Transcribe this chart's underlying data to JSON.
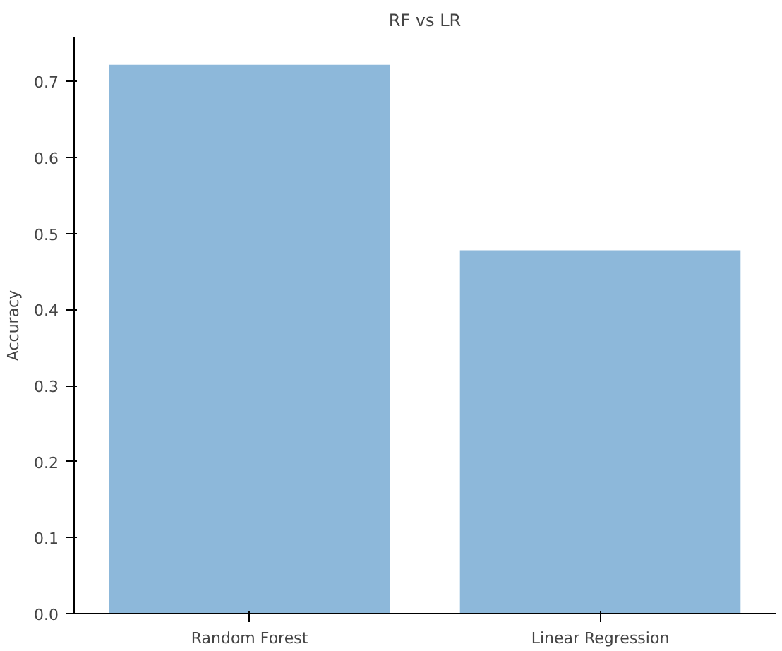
{
  "chart_data": {
    "type": "bar",
    "title": "RF vs LR",
    "ylabel": "Accuracy",
    "categories": [
      "Random Forest",
      "Linear Regression"
    ],
    "values": [
      0.722,
      0.478
    ],
    "color": "#8db8da",
    "ylim": [
      0,
      0.758
    ],
    "yticks": [
      {
        "value": 0,
        "label": "0.0"
      },
      0.1,
      0.2,
      0.3,
      0.4,
      0.5,
      0.6,
      0.7
    ],
    "grid": false
  }
}
